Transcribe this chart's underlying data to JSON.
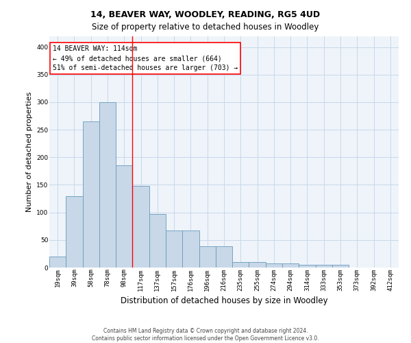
{
  "title": "14, BEAVER WAY, WOODLEY, READING, RG5 4UD",
  "subtitle": "Size of property relative to detached houses in Woodley",
  "xlabel": "Distribution of detached houses by size in Woodley",
  "ylabel": "Number of detached properties",
  "bar_labels": [
    "19sqm",
    "39sqm",
    "58sqm",
    "78sqm",
    "98sqm",
    "117sqm",
    "137sqm",
    "157sqm",
    "176sqm",
    "196sqm",
    "216sqm",
    "235sqm",
    "255sqm",
    "274sqm",
    "294sqm",
    "314sqm",
    "333sqm",
    "353sqm",
    "373sqm",
    "392sqm",
    "412sqm"
  ],
  "bar_values": [
    20,
    130,
    265,
    300,
    185,
    148,
    97,
    67,
    67,
    38,
    38,
    10,
    10,
    7,
    7,
    5,
    5,
    5,
    0,
    0,
    0
  ],
  "bar_color": "#c8d8e8",
  "bar_edge_color": "#6699bb",
  "grid_color": "#c8d8ea",
  "bg_color": "#eef4fa",
  "vline_x": 4.5,
  "vline_color": "red",
  "annotation_text": "14 BEAVER WAY: 114sqm\n← 49% of detached houses are smaller (664)\n51% of semi-detached houses are larger (703) →",
  "annotation_box_color": "white",
  "annotation_box_edge": "red",
  "ylim": [
    0,
    420
  ],
  "yticks": [
    0,
    50,
    100,
    150,
    200,
    250,
    300,
    350,
    400
  ],
  "footer1": "Contains HM Land Registry data © Crown copyright and database right 2024.",
  "footer2": "Contains public sector information licensed under the Open Government Licence v3.0.",
  "title_fontsize": 9,
  "subtitle_fontsize": 8.5,
  "ylabel_fontsize": 8,
  "xlabel_fontsize": 8.5,
  "tick_fontsize": 6.5,
  "ann_fontsize": 7,
  "footer_fontsize": 5.5
}
